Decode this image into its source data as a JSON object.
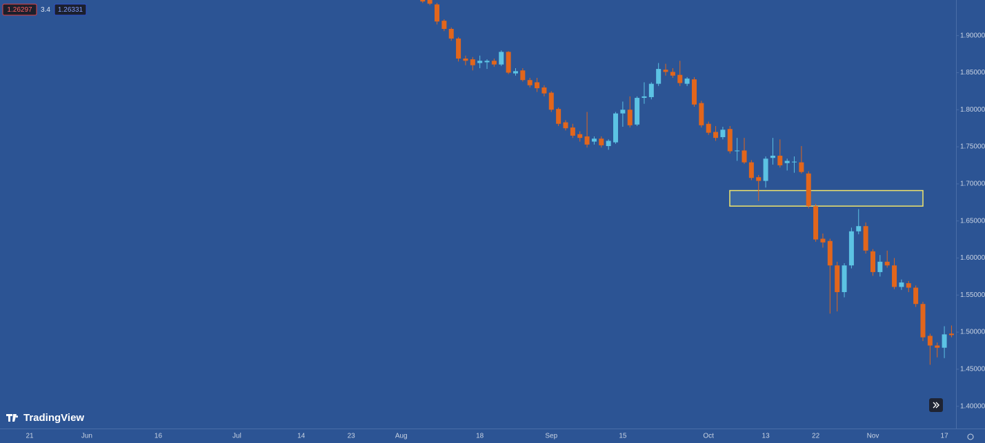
{
  "chart_data": {
    "type": "candlestick",
    "quote": {
      "bid": "1.26297",
      "spread": "3.4",
      "ask": "1.26331"
    },
    "brand": "TradingView",
    "categories": [
      "21",
      null,
      null,
      null,
      null,
      null,
      null,
      null,
      "Jun",
      null,
      null,
      null,
      null,
      null,
      null,
      null,
      null,
      null,
      "16",
      null,
      null,
      null,
      null,
      null,
      null,
      null,
      null,
      null,
      null,
      "Jul",
      null,
      null,
      null,
      null,
      null,
      null,
      null,
      null,
      "14",
      null,
      null,
      null,
      null,
      null,
      null,
      "23",
      null,
      null,
      null,
      null,
      null,
      null,
      "Aug",
      null,
      null,
      null,
      null,
      null,
      null,
      null,
      null,
      null,
      null,
      "18",
      null,
      null,
      null,
      null,
      null,
      null,
      null,
      null,
      null,
      "Sep",
      null,
      null,
      null,
      null,
      null,
      null,
      null,
      null,
      null,
      "15",
      null,
      null,
      null,
      null,
      null,
      null,
      null,
      null,
      null,
      null,
      null,
      "Oct",
      null,
      null,
      null,
      null,
      null,
      null,
      null,
      "13",
      null,
      null,
      null,
      null,
      null,
      null,
      "22",
      null,
      null,
      null,
      null,
      null,
      null,
      null,
      "Nov",
      null,
      null,
      null,
      null,
      null,
      null,
      null,
      null,
      null,
      "17",
      null
    ],
    "open": [
      null,
      null,
      null,
      null,
      null,
      null,
      null,
      null,
      null,
      null,
      null,
      null,
      null,
      null,
      null,
      null,
      null,
      null,
      null,
      null,
      null,
      null,
      null,
      null,
      null,
      null,
      null,
      null,
      null,
      null,
      null,
      null,
      null,
      null,
      null,
      null,
      null,
      null,
      null,
      null,
      null,
      null,
      null,
      null,
      null,
      null,
      null,
      null,
      null,
      null,
      null,
      null,
      null,
      null,
      null,
      1.95,
      1.949,
      1.942,
      1.92,
      1.909,
      1.896,
      1.869,
      1.868,
      1.863,
      1.864,
      1.866,
      1.861,
      1.878,
      1.849,
      1.853,
      1.84,
      1.837,
      1.83,
      1.823,
      1.801,
      1.783,
      1.776,
      1.767,
      1.764,
      1.757,
      1.761,
      1.751,
      1.756,
      1.795,
      1.8,
      1.78,
      1.816,
      1.817,
      1.835,
      1.854,
      1.851,
      1.847,
      1.835,
      1.841,
      1.809,
      1.781,
      1.77,
      1.763,
      1.774,
      1.744,
      1.745,
      1.729,
      1.709,
      1.704,
      1.735,
      1.738,
      1.728,
      1.729,
      1.729,
      1.714,
      1.67,
      1.626,
      1.623,
      1.59,
      1.554,
      1.59,
      1.636,
      1.643,
      1.609,
      1.581,
      1.595,
      1.59,
      1.561,
      1.566,
      1.56,
      1.538,
      1.495,
      1.482,
      1.479,
      1.498
    ],
    "high": [
      null,
      null,
      null,
      null,
      null,
      null,
      null,
      null,
      null,
      null,
      null,
      null,
      null,
      null,
      null,
      null,
      null,
      null,
      null,
      null,
      null,
      null,
      null,
      null,
      null,
      null,
      null,
      null,
      null,
      null,
      null,
      null,
      null,
      null,
      null,
      null,
      null,
      null,
      null,
      null,
      null,
      null,
      null,
      null,
      null,
      null,
      null,
      null,
      null,
      null,
      null,
      null,
      null,
      null,
      null,
      1.952,
      1.951,
      1.944,
      1.922,
      1.911,
      1.898,
      1.873,
      1.871,
      1.873,
      1.868,
      1.869,
      1.88,
      1.879,
      1.856,
      1.856,
      1.843,
      1.843,
      1.833,
      1.825,
      1.803,
      1.786,
      1.781,
      1.771,
      1.797,
      1.764,
      1.764,
      1.76,
      1.797,
      1.811,
      1.818,
      1.818,
      1.837,
      1.837,
      1.863,
      1.862,
      1.856,
      1.866,
      1.844,
      1.844,
      1.812,
      1.784,
      1.778,
      1.777,
      1.778,
      1.762,
      1.762,
      1.732,
      1.712,
      1.737,
      1.762,
      1.76,
      1.734,
      1.737,
      1.751,
      1.717,
      1.673,
      1.633,
      1.626,
      1.595,
      1.593,
      1.641,
      1.666,
      1.648,
      1.612,
      1.604,
      1.61,
      1.6,
      1.571,
      1.569,
      1.563,
      1.541,
      1.498,
      1.486,
      1.508,
      1.509
    ],
    "low": [
      null,
      null,
      null,
      null,
      null,
      null,
      null,
      null,
      null,
      null,
      null,
      null,
      null,
      null,
      null,
      null,
      null,
      null,
      null,
      null,
      null,
      null,
      null,
      null,
      null,
      null,
      null,
      null,
      null,
      null,
      null,
      null,
      null,
      null,
      null,
      null,
      null,
      null,
      null,
      null,
      null,
      null,
      null,
      null,
      null,
      null,
      null,
      null,
      null,
      null,
      null,
      null,
      null,
      null,
      null,
      1.944,
      1.941,
      1.915,
      1.906,
      1.893,
      1.865,
      1.86,
      1.853,
      1.856,
      1.855,
      1.858,
      1.859,
      1.848,
      1.846,
      1.838,
      1.83,
      1.824,
      1.818,
      1.797,
      1.778,
      1.772,
      1.762,
      1.757,
      1.749,
      1.753,
      1.749,
      1.746,
      1.754,
      1.777,
      1.776,
      1.778,
      1.808,
      1.814,
      1.832,
      1.846,
      1.843,
      1.832,
      1.832,
      1.804,
      1.776,
      1.766,
      1.758,
      1.76,
      1.741,
      1.731,
      1.727,
      1.705,
      1.677,
      1.695,
      1.726,
      1.722,
      1.718,
      1.715,
      1.714,
      1.667,
      1.622,
      1.614,
      1.525,
      1.528,
      1.547,
      1.586,
      1.632,
      1.606,
      1.576,
      1.575,
      1.587,
      1.558,
      1.557,
      1.554,
      1.534,
      1.488,
      1.456,
      1.466,
      1.465,
      1.493
    ],
    "close": [
      null,
      null,
      null,
      null,
      null,
      null,
      null,
      null,
      null,
      null,
      null,
      null,
      null,
      null,
      null,
      null,
      null,
      null,
      null,
      null,
      null,
      null,
      null,
      null,
      null,
      null,
      null,
      null,
      null,
      null,
      null,
      null,
      null,
      null,
      null,
      null,
      null,
      null,
      null,
      null,
      null,
      null,
      null,
      null,
      null,
      null,
      null,
      null,
      null,
      null,
      null,
      null,
      null,
      null,
      null,
      1.946,
      1.943,
      1.919,
      1.909,
      1.896,
      1.869,
      1.866,
      1.86,
      1.866,
      1.866,
      1.861,
      1.878,
      1.85,
      1.852,
      1.84,
      1.833,
      1.829,
      1.822,
      1.8,
      1.781,
      1.775,
      1.765,
      1.762,
      1.753,
      1.761,
      1.752,
      1.758,
      1.795,
      1.8,
      1.779,
      1.816,
      1.818,
      1.835,
      1.855,
      1.851,
      1.846,
      1.836,
      1.842,
      1.807,
      1.779,
      1.769,
      1.762,
      1.773,
      1.744,
      1.745,
      1.729,
      1.708,
      1.704,
      1.734,
      1.738,
      1.725,
      1.731,
      1.73,
      1.716,
      1.67,
      1.625,
      1.621,
      1.59,
      1.554,
      1.59,
      1.636,
      1.643,
      1.61,
      1.581,
      1.595,
      1.59,
      1.561,
      1.567,
      1.56,
      1.538,
      1.493,
      1.482,
      1.479,
      1.497,
      1.496
    ],
    "up_color": "#5cc3e4",
    "down_color": "#e2661c",
    "background": "#2c5494",
    "zone": {
      "ylim": [
        1.67,
        1.691
      ],
      "color": "#f2e56b"
    },
    "ylim": [
      1.37,
      1.948
    ],
    "yticks": [
      {
        "value": 1.4,
        "label": "1.40000"
      },
      {
        "value": 1.45,
        "label": "1.45000"
      },
      {
        "value": 1.5,
        "label": "1.50000"
      },
      {
        "value": 1.55,
        "label": "1.55000"
      },
      {
        "value": 1.6,
        "label": "1.60000"
      },
      {
        "value": 1.65,
        "label": "1.65000"
      },
      {
        "value": 1.7,
        "label": "1.70000"
      },
      {
        "value": 1.75,
        "label": "1.75000"
      },
      {
        "value": 1.8,
        "label": "1.80000"
      },
      {
        "value": 1.85,
        "label": "1.85000"
      },
      {
        "value": 1.9,
        "label": "1.90000"
      }
    ]
  }
}
